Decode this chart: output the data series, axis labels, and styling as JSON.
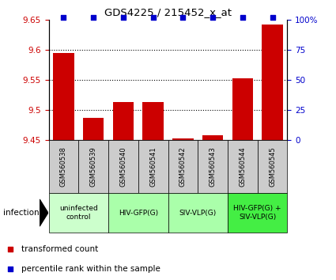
{
  "title": "GDS4225 / 215452_x_at",
  "samples": [
    "GSM560538",
    "GSM560539",
    "GSM560540",
    "GSM560541",
    "GSM560542",
    "GSM560543",
    "GSM560544",
    "GSM560545"
  ],
  "bar_values": [
    9.595,
    9.487,
    9.513,
    9.513,
    9.452,
    9.458,
    9.552,
    9.642
  ],
  "percentile_values": [
    100,
    100,
    100,
    100,
    100,
    100,
    100,
    100
  ],
  "ymin": 9.45,
  "ymax": 9.65,
  "yticks": [
    9.45,
    9.5,
    9.55,
    9.6,
    9.65
  ],
  "right_yticks": [
    0,
    25,
    50,
    75,
    100
  ],
  "right_ytick_labels": [
    "0",
    "25",
    "50",
    "75",
    "100%"
  ],
  "bar_color": "#cc0000",
  "dot_color": "#0000cc",
  "gridline_values": [
    9.5,
    9.55,
    9.6
  ],
  "groups": [
    {
      "label": "uninfected\ncontrol",
      "start": 0,
      "end": 2,
      "color": "#ccffcc"
    },
    {
      "label": "HIV-GFP(G)",
      "start": 2,
      "end": 4,
      "color": "#aaffaa"
    },
    {
      "label": "SIV-VLP(G)",
      "start": 4,
      "end": 6,
      "color": "#aaffaa"
    },
    {
      "label": "HIV-GFP(G) +\nSIV-VLP(G)",
      "start": 6,
      "end": 8,
      "color": "#44ee44"
    }
  ],
  "infection_label": "infection",
  "legend_bar_label": "transformed count",
  "legend_dot_label": "percentile rank within the sample",
  "sample_box_color": "#cccccc",
  "left_tick_color": "#cc0000",
  "right_tick_color": "#0000cc",
  "bar_width": 0.7
}
